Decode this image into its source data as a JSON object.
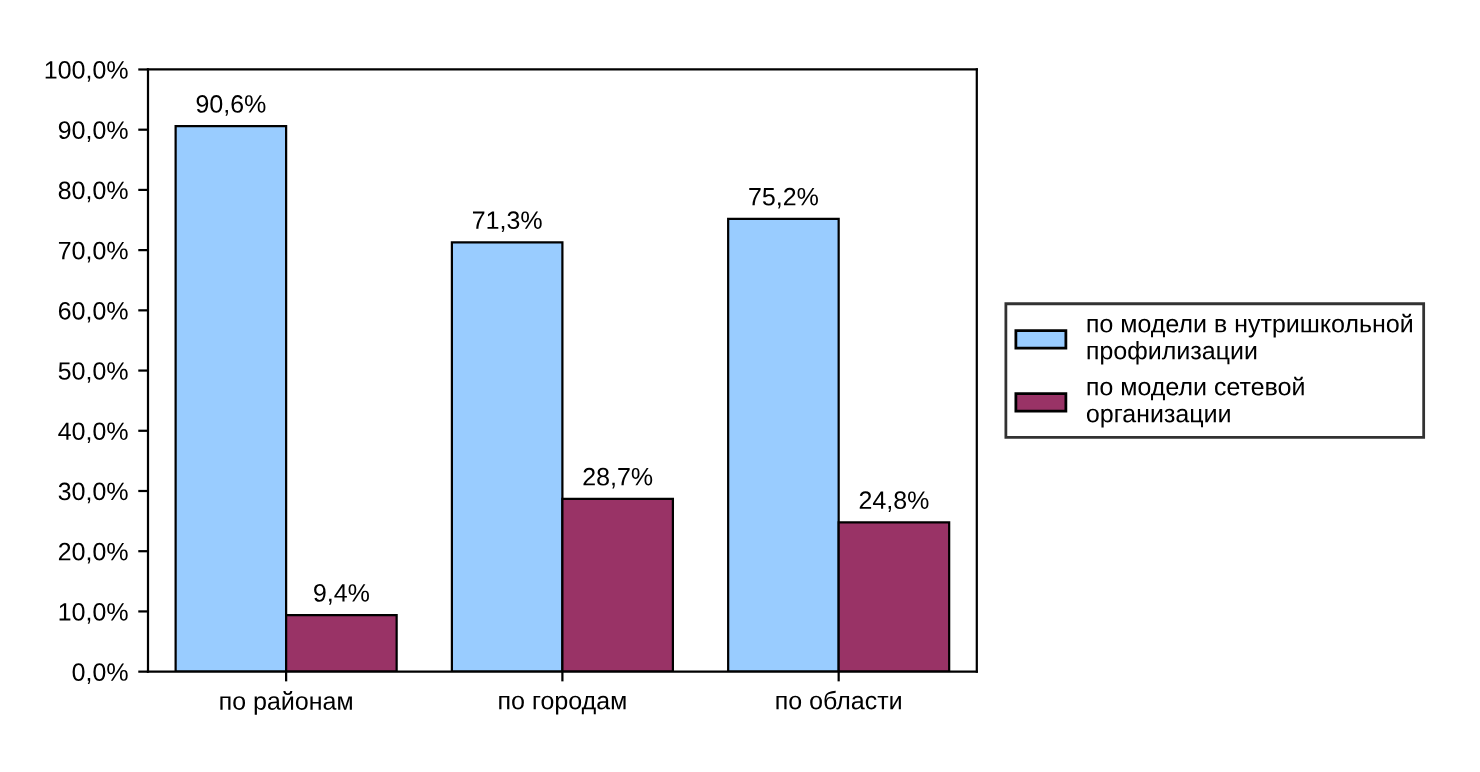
{
  "chart_data": {
    "type": "bar",
    "categories": [
      "по районам",
      "по городам",
      "по области"
    ],
    "series": [
      {
        "name": "по модели в нутришкольной профилизации",
        "color": "#99ccff",
        "values": [
          90.6,
          71.3,
          75.2
        ]
      },
      {
        "name": "по модели сетевой организации",
        "color": "#993366",
        "values": [
          9.4,
          28.7,
          24.8
        ]
      }
    ],
    "ylim": [
      0,
      100
    ],
    "yticks": [
      {
        "value": 0,
        "label": "0,0%"
      },
      {
        "value": 10,
        "label": "10,0%"
      },
      {
        "value": 20,
        "label": "20,0%"
      },
      {
        "value": 30,
        "label": "30,0%"
      },
      {
        "value": 40,
        "label": "40,0%"
      },
      {
        "value": 50,
        "label": "50,0%"
      },
      {
        "value": 60,
        "label": "60,0%"
      },
      {
        "value": 70,
        "label": "70,0%"
      },
      {
        "value": 80,
        "label": "80,0%"
      },
      {
        "value": 90,
        "label": "90,0%"
      },
      {
        "value": 100,
        "label": "100,0%"
      }
    ],
    "value_labels": [
      [
        "90,6%",
        "71,3%",
        "75,2%"
      ],
      [
        "9,4%",
        "28,7%",
        "24,8%"
      ]
    ],
    "legend": "right",
    "grid": false
  }
}
